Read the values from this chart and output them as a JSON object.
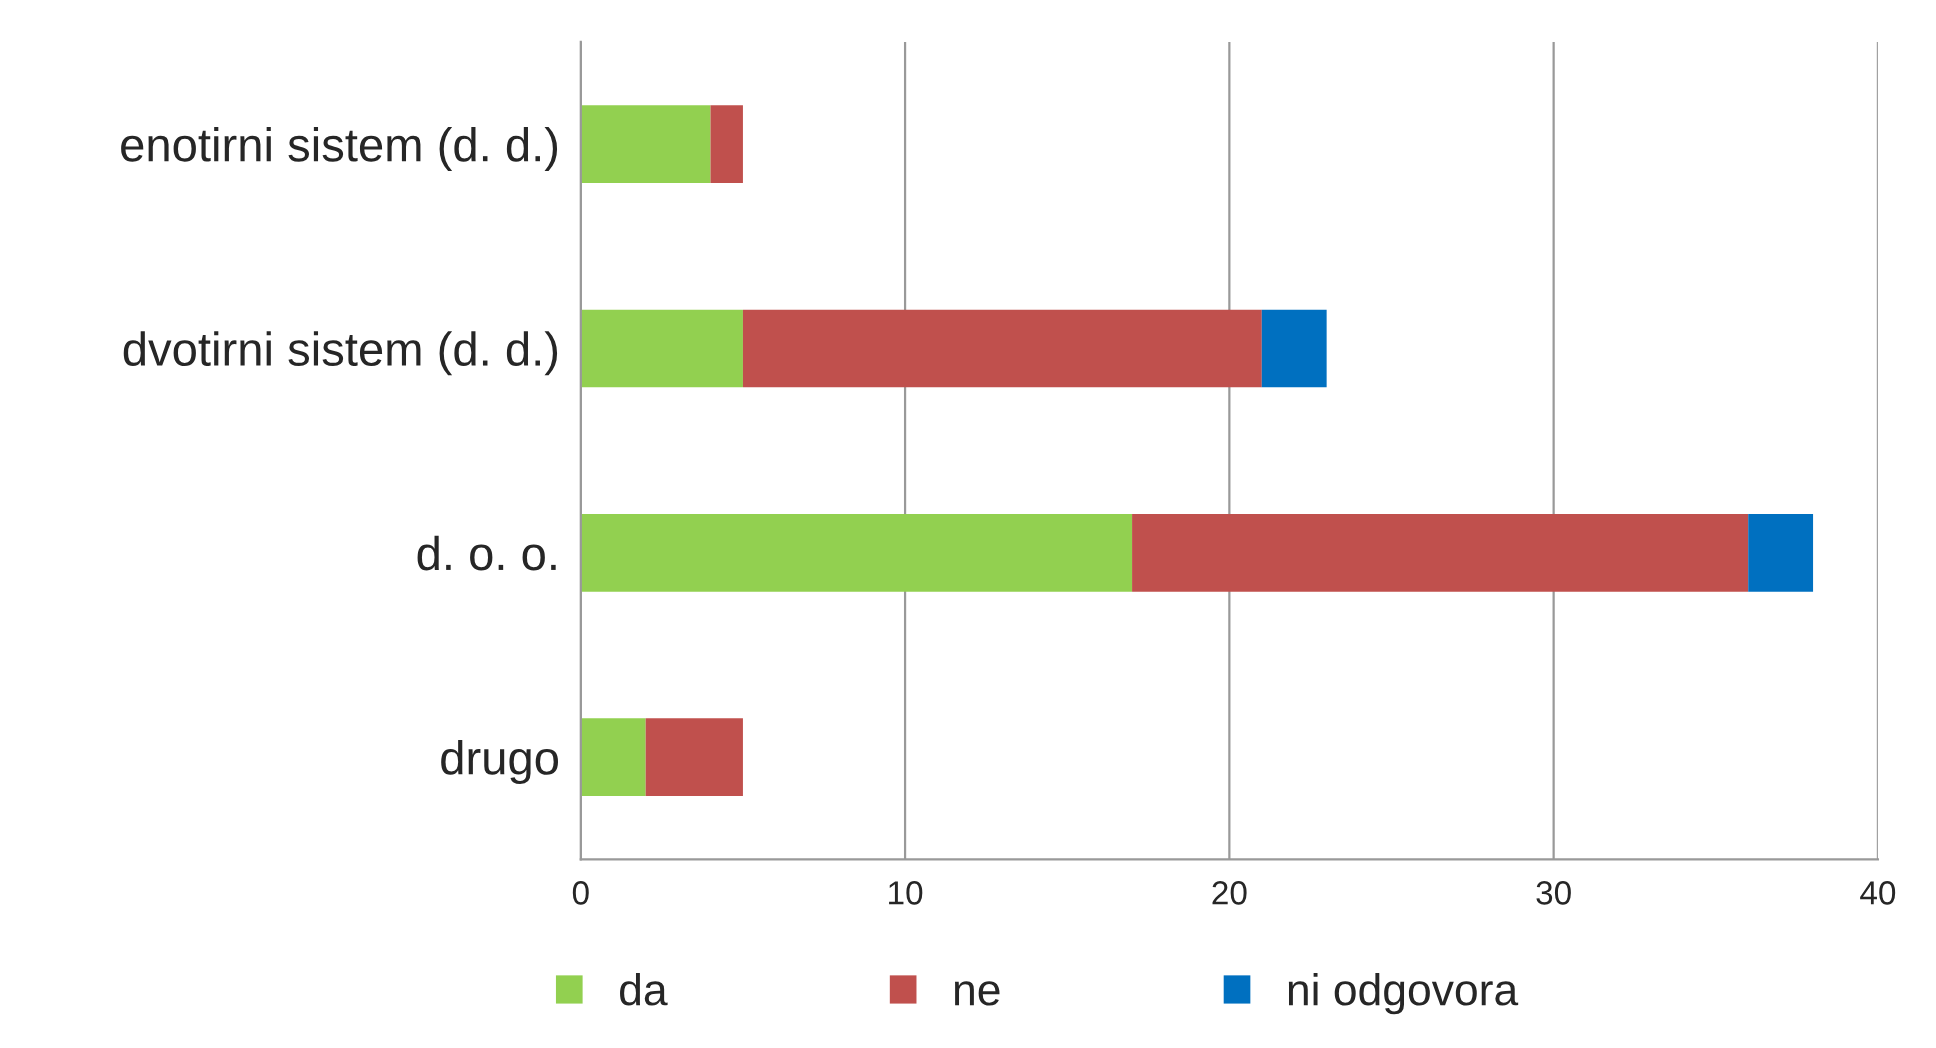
{
  "chart_data": {
    "type": "bar",
    "orientation": "horizontal",
    "stacked": true,
    "categories": [
      "enotirni sistem (d. d.)",
      "dvotirni sistem (d. d.)",
      "d. o. o.",
      "drugo"
    ],
    "series": [
      {
        "name": "da",
        "color": "#92d050",
        "values": [
          4,
          5,
          17,
          2
        ]
      },
      {
        "name": "ne",
        "color": "#c0504d",
        "values": [
          1,
          16,
          19,
          3
        ]
      },
      {
        "name": "ni odgovora",
        "color": "#0070c0",
        "values": [
          null,
          2,
          2,
          null
        ]
      }
    ],
    "xlim": [
      0,
      40
    ],
    "xticks": [
      0,
      10,
      20,
      30,
      40
    ],
    "grid": "x",
    "legend": "bottom"
  }
}
